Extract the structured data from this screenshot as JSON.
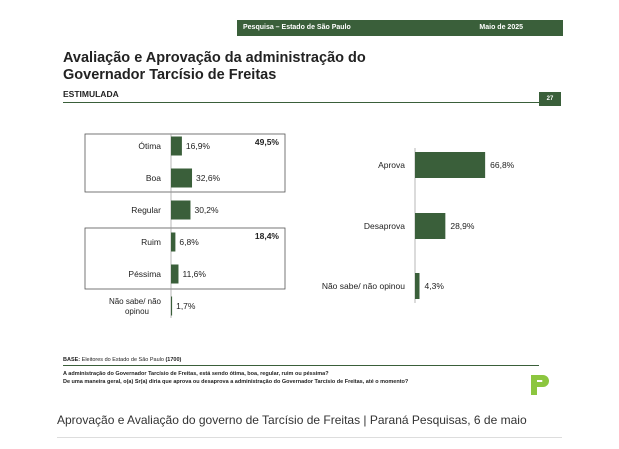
{
  "header": {
    "survey_label": "Pesquisa – Estado de São Paulo",
    "date_label": "Maio de 2025",
    "page_number": "27"
  },
  "title_line1": "Avaliação e Aprovação da administração do",
  "title_line2": "Governador Tarcísio de Freitas",
  "subtitle": "ESTIMULADA",
  "base_label": "BASE:",
  "base_text": "Eleitores do Estado de São Paulo",
  "base_count": "(1700)",
  "question_1": "A administração do Governador Tarcísio de Freitas, está sendo ótima, boa, regular, ruim ou péssima?",
  "question_2": "De uma maneira geral, o(a) Sr(a) diria que aprova ou desaprova a administração do Governador Tarcísio de Freitas, até o momento?",
  "caption": "Aprovação e Avaliação do governo de Tarcísio de Freitas | Paraná Pesquisas, 6 de maio",
  "colors": {
    "bar": "#3a5f3a",
    "accent": "#3a5f3a",
    "logo": "#8cc63f"
  },
  "chart_data": [
    {
      "type": "bar",
      "orientation": "horizontal",
      "categories": [
        "Ótima",
        "Boa",
        "Regular",
        "Ruim",
        "Péssima",
        "Não sabe/ não opinou"
      ],
      "values": [
        16.9,
        32.6,
        30.2,
        6.8,
        11.6,
        1.7
      ],
      "value_labels": [
        "16,9%",
        "32,6%",
        "30,2%",
        "6,8%",
        "11,6%",
        "1,7%"
      ],
      "groups": [
        {
          "members": [
            "Ótima",
            "Boa"
          ],
          "total_label": "49,5%"
        },
        {
          "members": [
            "Ruim",
            "Péssima"
          ],
          "total_label": "18,4%"
        }
      ]
    },
    {
      "type": "bar",
      "orientation": "horizontal",
      "categories": [
        "Aprova",
        "Desaprova",
        "Não sabe/ não opinou"
      ],
      "values": [
        66.8,
        28.9,
        4.3
      ],
      "value_labels": [
        "66,8%",
        "28,9%",
        "4,3%"
      ]
    }
  ]
}
